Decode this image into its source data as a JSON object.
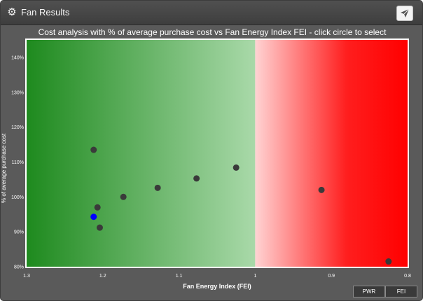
{
  "window": {
    "title": "Fan Results",
    "title_icon": "gear-icon",
    "action_icon": "send-icon"
  },
  "chart_data": {
    "type": "scatter",
    "title": "Cost analysis with % of average purchase cost vs Fan Energy Index FEI - click circle to select",
    "xlabel": "Fan Energy Index (FEI)",
    "ylabel": "% of average purchase cost",
    "x_axis_reversed": true,
    "xlim": [
      1.3,
      0.8
    ],
    "ylim": [
      80,
      145
    ],
    "x_ticks": [
      "1.3",
      "1.2",
      "1.1",
      "1",
      "0.9",
      "0.8"
    ],
    "y_ticks": [
      "80%",
      "90%",
      "100%",
      "110%",
      "120%",
      "130%",
      "140%"
    ],
    "background": {
      "good_region_color": "#1f8a1f",
      "bad_region_color": "#ff0000",
      "split_at": 1.0
    },
    "points": [
      {
        "x": 1.212,
        "y": 113.5,
        "selected": false
      },
      {
        "x": 1.207,
        "y": 97.0,
        "selected": false
      },
      {
        "x": 1.212,
        "y": 94.3,
        "selected": true
      },
      {
        "x": 1.204,
        "y": 91.2,
        "selected": false
      },
      {
        "x": 1.173,
        "y": 100.0,
        "selected": false
      },
      {
        "x": 1.128,
        "y": 102.6,
        "selected": false
      },
      {
        "x": 1.077,
        "y": 105.3,
        "selected": false
      },
      {
        "x": 1.025,
        "y": 108.4,
        "selected": false
      },
      {
        "x": 0.913,
        "y": 102.0,
        "selected": false
      },
      {
        "x": 0.825,
        "y": 81.5,
        "selected": false
      }
    ],
    "point_color": "#3a3a3a",
    "selected_color": "#0000ff"
  },
  "buttons": {
    "pwr": "PWR",
    "fei": "FEI"
  }
}
